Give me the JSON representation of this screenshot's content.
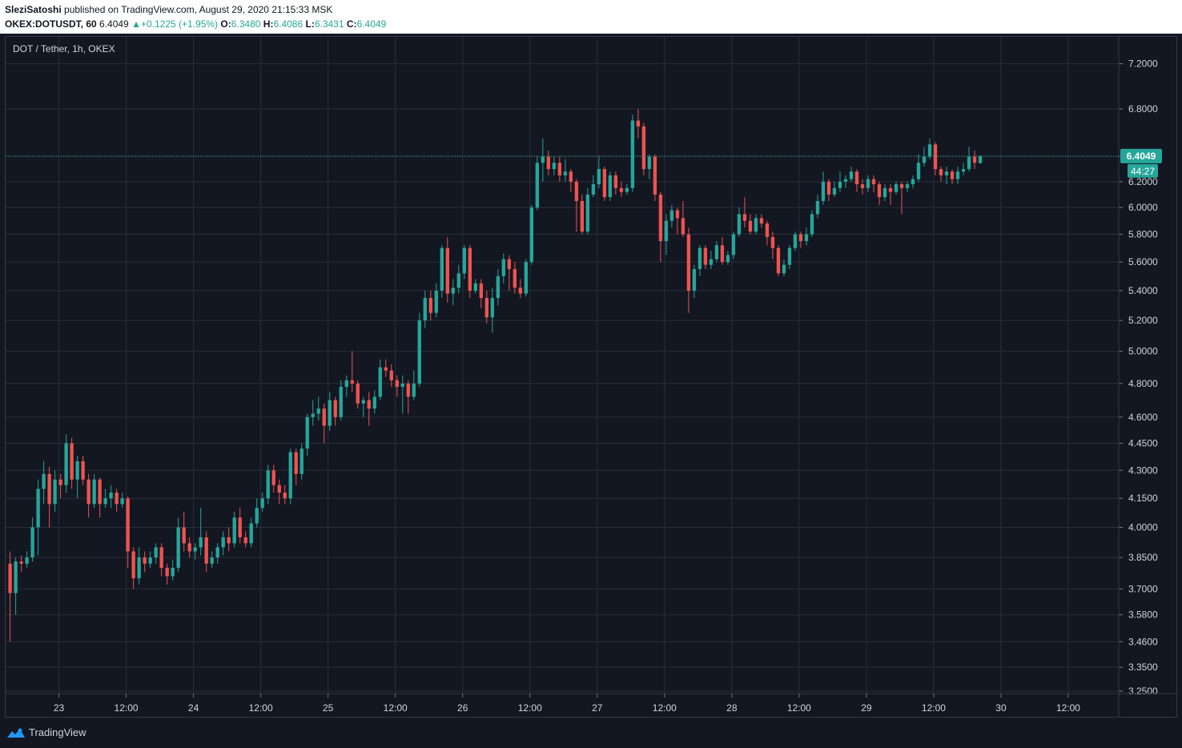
{
  "header": {
    "author": "SleziSatoshi",
    "published": " published on TradingView.com, August 29, 2020 21:15:33 MSK",
    "symbol": "OKEX:DOTUSDT, 60",
    "last": "6.4049",
    "change": "+0.1225 (+1.95%)",
    "o_label": "O:",
    "o_value": "6.3480",
    "h_label": "H:",
    "h_value": "6.4086",
    "l_label": "L:",
    "l_value": "6.3431",
    "c_label": "C:",
    "c_value": "6.4049"
  },
  "footer": {
    "brand": "TradingView",
    "logo_icon": "tradingview-logo-icon"
  },
  "colors": {
    "background": "#131722",
    "grid": "#2a2e39",
    "up": "#26a69a",
    "down": "#ef5350",
    "text": "#d1d4dc"
  },
  "chart_data": {
    "type": "candlestick",
    "title": "DOT / Tether, 1h, OKEX",
    "scale": "log",
    "ylim": [
      3.24,
      7.45
    ],
    "y_ticks": [
      "7.2000",
      "6.8000",
      "6.4000",
      "6.2000",
      "6.0000",
      "5.8000",
      "5.6000",
      "5.4000",
      "5.2000",
      "5.0000",
      "4.8000",
      "4.6000",
      "4.4500",
      "4.3000",
      "4.1500",
      "4.0000",
      "3.8500",
      "3.7000",
      "3.5800",
      "3.4600",
      "3.3500",
      "3.2500"
    ],
    "x_ticks": [
      {
        "label": "23",
        "hour": 24
      },
      {
        "label": "12:00",
        "hour": 36
      },
      {
        "label": "24",
        "hour": 48
      },
      {
        "label": "12:00",
        "hour": 60
      },
      {
        "label": "25",
        "hour": 72
      },
      {
        "label": "12:00",
        "hour": 84
      },
      {
        "label": "26",
        "hour": 96
      },
      {
        "label": "12:00",
        "hour": 108
      },
      {
        "label": "27",
        "hour": 120
      },
      {
        "label": "12:00",
        "hour": 132
      },
      {
        "label": "28",
        "hour": 144
      },
      {
        "label": "12:00",
        "hour": 156
      },
      {
        "label": "29",
        "hour": 168
      },
      {
        "label": "12:00",
        "hour": 180
      },
      {
        "label": "30",
        "hour": 192
      },
      {
        "label": "12:00",
        "hour": 204
      }
    ],
    "x_range_hours": [
      14.5,
      213
    ],
    "last_price": "6.4049",
    "countdown": "44:27",
    "candles": [
      [
        3.82,
        3.68,
        3.88,
        3.46
      ],
      [
        3.68,
        3.83,
        3.85,
        3.58
      ],
      [
        3.83,
        3.82,
        3.86,
        3.78
      ],
      [
        3.82,
        3.85,
        3.88,
        3.8
      ],
      [
        3.85,
        4.0,
        4.05,
        3.83
      ],
      [
        4.0,
        4.2,
        4.25,
        3.86
      ],
      [
        4.2,
        4.28,
        4.35,
        4.12
      ],
      [
        4.28,
        4.12,
        4.32,
        4.0
      ],
      [
        4.12,
        4.25,
        4.3,
        4.08
      ],
      [
        4.25,
        4.22,
        4.28,
        4.15
      ],
      [
        4.22,
        4.45,
        4.5,
        4.18
      ],
      [
        4.45,
        4.25,
        4.48,
        4.2
      ],
      [
        4.25,
        4.35,
        4.38,
        4.15
      ],
      [
        4.35,
        4.25,
        4.38,
        4.22
      ],
      [
        4.25,
        4.12,
        4.28,
        4.05
      ],
      [
        4.12,
        4.25,
        4.28,
        4.1
      ],
      [
        4.25,
        4.12,
        4.26,
        4.05
      ],
      [
        4.12,
        4.15,
        4.2,
        4.1
      ],
      [
        4.15,
        4.18,
        4.22,
        4.1
      ],
      [
        4.18,
        4.12,
        4.2,
        4.08
      ],
      [
        4.12,
        4.15,
        4.18,
        4.1
      ],
      [
        4.15,
        3.88,
        4.16,
        3.8
      ],
      [
        3.88,
        3.75,
        3.9,
        3.7
      ],
      [
        3.75,
        3.85,
        3.9,
        3.72
      ],
      [
        3.85,
        3.82,
        3.88,
        3.78
      ],
      [
        3.82,
        3.85,
        3.88,
        3.8
      ],
      [
        3.85,
        3.9,
        3.92,
        3.82
      ],
      [
        3.9,
        3.8,
        3.92,
        3.76
      ],
      [
        3.8,
        3.76,
        3.82,
        3.72
      ],
      [
        3.76,
        3.8,
        3.84,
        3.74
      ],
      [
        3.8,
        4.0,
        4.05,
        3.78
      ],
      [
        4.0,
        3.92,
        4.08,
        3.88
      ],
      [
        3.92,
        3.88,
        3.95,
        3.85
      ],
      [
        3.88,
        3.9,
        3.92,
        3.84
      ],
      [
        3.9,
        3.95,
        4.1,
        3.86
      ],
      [
        3.95,
        3.82,
        3.98,
        3.78
      ],
      [
        3.82,
        3.85,
        3.88,
        3.8
      ],
      [
        3.85,
        3.9,
        3.92,
        3.82
      ],
      [
        3.9,
        3.95,
        3.98,
        3.86
      ],
      [
        3.95,
        3.92,
        4.0,
        3.88
      ],
      [
        3.92,
        4.05,
        4.08,
        3.9
      ],
      [
        4.05,
        3.95,
        4.1,
        3.92
      ],
      [
        3.95,
        3.92,
        3.98,
        3.9
      ],
      [
        3.92,
        4.02,
        4.05,
        3.9
      ],
      [
        4.02,
        4.1,
        4.15,
        4.0
      ],
      [
        4.1,
        4.15,
        4.18,
        4.08
      ],
      [
        4.15,
        4.3,
        4.33,
        4.12
      ],
      [
        4.3,
        4.22,
        4.33,
        4.18
      ],
      [
        4.22,
        4.18,
        4.25,
        4.12
      ],
      [
        4.18,
        4.15,
        4.22,
        4.12
      ],
      [
        4.15,
        4.4,
        4.42,
        4.12
      ],
      [
        4.4,
        4.28,
        4.42,
        4.22
      ],
      [
        4.28,
        4.42,
        4.45,
        4.25
      ],
      [
        4.42,
        4.6,
        4.62,
        4.38
      ],
      [
        4.6,
        4.62,
        4.7,
        4.55
      ],
      [
        4.62,
        4.65,
        4.72,
        4.58
      ],
      [
        4.65,
        4.55,
        4.68,
        4.45
      ],
      [
        4.55,
        4.7,
        4.75,
        4.52
      ],
      [
        4.7,
        4.6,
        4.72,
        4.55
      ],
      [
        4.6,
        4.78,
        4.82,
        4.58
      ],
      [
        4.78,
        4.82,
        4.85,
        4.72
      ],
      [
        4.82,
        4.8,
        5.0,
        4.75
      ],
      [
        4.8,
        4.68,
        4.82,
        4.65
      ],
      [
        4.68,
        4.7,
        4.72,
        4.6
      ],
      [
        4.7,
        4.65,
        4.75,
        4.55
      ],
      [
        4.65,
        4.72,
        4.76,
        4.62
      ],
      [
        4.72,
        4.9,
        4.95,
        4.7
      ],
      [
        4.9,
        4.88,
        4.95,
        4.84
      ],
      [
        4.88,
        4.82,
        4.92,
        4.78
      ],
      [
        4.82,
        4.78,
        4.85,
        4.72
      ],
      [
        4.78,
        4.8,
        4.85,
        4.62
      ],
      [
        4.8,
        4.72,
        4.82,
        4.62
      ],
      [
        4.72,
        4.8,
        4.88,
        4.7
      ],
      [
        4.8,
        5.2,
        5.25,
        4.78
      ],
      [
        5.2,
        5.35,
        5.4,
        5.15
      ],
      [
        5.35,
        5.25,
        5.4,
        5.2
      ],
      [
        5.25,
        5.4,
        5.45,
        5.22
      ],
      [
        5.4,
        5.7,
        5.72,
        5.35
      ],
      [
        5.7,
        5.38,
        5.78,
        5.32
      ],
      [
        5.38,
        5.42,
        5.48,
        5.3
      ],
      [
        5.42,
        5.52,
        5.58,
        5.38
      ],
      [
        5.52,
        5.7,
        5.72,
        5.48
      ],
      [
        5.7,
        5.4,
        5.72,
        5.35
      ],
      [
        5.4,
        5.45,
        5.48,
        5.38
      ],
      [
        5.45,
        5.35,
        5.48,
        5.28
      ],
      [
        5.35,
        5.22,
        5.4,
        5.18
      ],
      [
        5.22,
        5.35,
        5.42,
        5.12
      ],
      [
        5.35,
        5.5,
        5.55,
        5.3
      ],
      [
        5.5,
        5.62,
        5.66,
        5.45
      ],
      [
        5.62,
        5.55,
        5.65,
        5.4
      ],
      [
        5.55,
        5.42,
        5.6,
        5.38
      ],
      [
        5.42,
        5.38,
        5.48,
        5.35
      ],
      [
        5.38,
        5.6,
        5.62,
        5.36
      ],
      [
        5.6,
        6.0,
        6.02,
        5.58
      ],
      [
        6.0,
        6.35,
        6.4,
        5.98
      ],
      [
        6.35,
        6.4,
        6.55,
        6.2
      ],
      [
        6.4,
        6.3,
        6.45,
        6.25
      ],
      [
        6.3,
        6.35,
        6.4,
        6.25
      ],
      [
        6.35,
        6.25,
        6.4,
        6.2
      ],
      [
        6.25,
        6.28,
        6.38,
        6.2
      ],
      [
        6.28,
        6.2,
        6.3,
        6.12
      ],
      [
        6.2,
        6.05,
        6.22,
        5.82
      ],
      [
        6.05,
        5.82,
        6.1,
        5.8
      ],
      [
        5.82,
        6.1,
        6.15,
        5.8
      ],
      [
        6.1,
        6.18,
        6.25,
        6.08
      ],
      [
        6.18,
        6.3,
        6.4,
        6.15
      ],
      [
        6.3,
        6.08,
        6.32,
        6.05
      ],
      [
        6.08,
        6.25,
        6.28,
        6.05
      ],
      [
        6.25,
        6.15,
        6.28,
        6.1
      ],
      [
        6.15,
        6.12,
        6.2,
        6.08
      ],
      [
        6.12,
        6.15,
        6.18,
        6.1
      ],
      [
        6.15,
        6.7,
        6.75,
        6.12
      ],
      [
        6.7,
        6.65,
        6.8,
        6.55
      ],
      [
        6.65,
        6.3,
        6.68,
        6.25
      ],
      [
        6.3,
        6.4,
        6.42,
        6.22
      ],
      [
        6.4,
        6.1,
        6.42,
        6.05
      ],
      [
        6.1,
        5.75,
        6.12,
        5.6
      ],
      [
        5.75,
        5.9,
        5.95,
        5.65
      ],
      [
        5.9,
        5.98,
        6.02,
        5.85
      ],
      [
        5.98,
        5.92,
        6.0,
        5.8
      ],
      [
        5.92,
        5.8,
        6.05,
        5.78
      ],
      [
        5.8,
        5.4,
        5.85,
        5.25
      ],
      [
        5.4,
        5.55,
        5.58,
        5.35
      ],
      [
        5.55,
        5.7,
        5.72,
        5.5
      ],
      [
        5.7,
        5.58,
        5.72,
        5.55
      ],
      [
        5.58,
        5.62,
        5.68,
        5.55
      ],
      [
        5.62,
        5.72,
        5.75,
        5.6
      ],
      [
        5.72,
        5.6,
        5.78,
        5.58
      ],
      [
        5.6,
        5.65,
        5.68,
        5.58
      ],
      [
        5.65,
        5.8,
        5.82,
        5.62
      ],
      [
        5.8,
        5.95,
        6.0,
        5.78
      ],
      [
        5.95,
        5.9,
        6.08,
        5.85
      ],
      [
        5.9,
        5.82,
        5.95,
        5.8
      ],
      [
        5.82,
        5.92,
        5.95,
        5.8
      ],
      [
        5.92,
        5.88,
        5.95,
        5.85
      ],
      [
        5.88,
        5.78,
        5.9,
        5.72
      ],
      [
        5.78,
        5.7,
        5.82,
        5.62
      ],
      [
        5.7,
        5.52,
        5.72,
        5.5
      ],
      [
        5.52,
        5.58,
        5.62,
        5.5
      ],
      [
        5.58,
        5.7,
        5.72,
        5.55
      ],
      [
        5.7,
        5.8,
        5.82,
        5.68
      ],
      [
        5.8,
        5.75,
        5.82,
        5.7
      ],
      [
        5.75,
        5.8,
        5.85,
        5.72
      ],
      [
        5.8,
        5.95,
        5.98,
        5.78
      ],
      [
        5.95,
        6.05,
        6.1,
        5.92
      ],
      [
        6.05,
        6.2,
        6.28,
        6.02
      ],
      [
        6.2,
        6.1,
        6.22,
        6.05
      ],
      [
        6.1,
        6.15,
        6.2,
        6.08
      ],
      [
        6.15,
        6.2,
        6.28,
        6.12
      ],
      [
        6.2,
        6.22,
        6.25,
        6.15
      ],
      [
        6.22,
        6.28,
        6.32,
        6.2
      ],
      [
        6.28,
        6.18,
        6.3,
        6.12
      ],
      [
        6.18,
        6.15,
        6.22,
        6.1
      ],
      [
        6.15,
        6.22,
        6.25,
        6.12
      ],
      [
        6.22,
        6.18,
        6.25,
        6.12
      ],
      [
        6.18,
        6.08,
        6.2,
        6.02
      ],
      [
        6.08,
        6.15,
        6.18,
        6.05
      ],
      [
        6.15,
        6.12,
        6.18,
        6.02
      ],
      [
        6.12,
        6.18,
        6.2,
        6.1
      ],
      [
        6.18,
        6.15,
        6.2,
        5.95
      ],
      [
        6.15,
        6.18,
        6.2,
        6.12
      ],
      [
        6.18,
        6.22,
        6.25,
        6.15
      ],
      [
        6.22,
        6.35,
        6.42,
        6.2
      ],
      [
        6.35,
        6.4,
        6.48,
        6.32
      ],
      [
        6.4,
        6.5,
        6.55,
        6.38
      ],
      [
        6.5,
        6.3,
        6.52,
        6.25
      ],
      [
        6.3,
        6.25,
        6.32,
        6.2
      ],
      [
        6.25,
        6.28,
        6.32,
        6.18
      ],
      [
        6.28,
        6.22,
        6.3,
        6.18
      ],
      [
        6.22,
        6.28,
        6.32,
        6.18
      ],
      [
        6.28,
        6.3,
        6.35,
        6.25
      ],
      [
        6.3,
        6.4,
        6.48,
        6.28
      ],
      [
        6.4,
        6.35,
        6.45,
        6.3
      ],
      [
        6.348,
        6.4049,
        6.4086,
        6.3431
      ]
    ]
  }
}
